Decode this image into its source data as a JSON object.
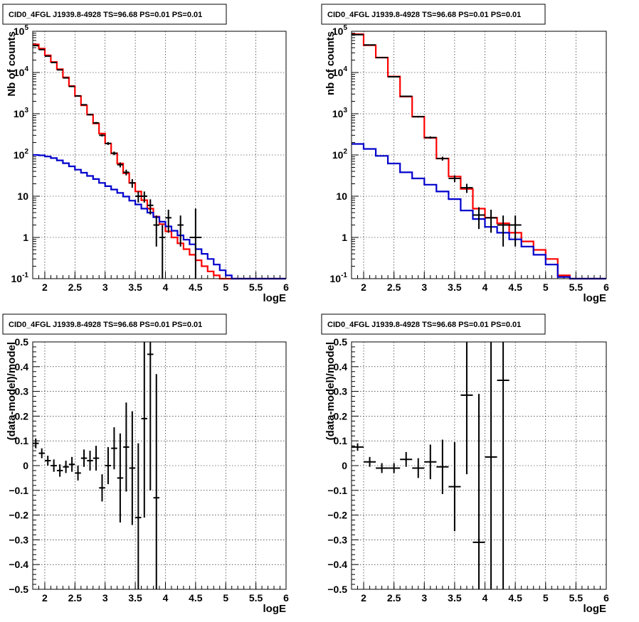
{
  "panels_title": "CID0_4FGL J1939.8-4928 TS=96.68 PS=0.01 PS=0.01",
  "colors": {
    "model_total": "#ff0000",
    "model_background": "#0000cc",
    "data": "#000000"
  },
  "chart_data": [
    {
      "type": "line",
      "title": "CID0_4FGL J1939.8-4928 TS=96.68 PS=0.01 PS=0.01",
      "xlabel": "logE",
      "ylabel": "Nb of counts",
      "xlim": [
        1.8,
        6.0
      ],
      "ylim": [
        0.1,
        100000
      ],
      "yscale": "log",
      "grid": true,
      "x_ticks": [
        "2",
        "2.5",
        "3",
        "3.5",
        "4",
        "4.5",
        "5",
        "5.5",
        "6"
      ],
      "y_ticks": [
        "10⁻¹",
        "1",
        "10",
        "10²",
        "10³",
        "10⁴",
        "10⁵"
      ],
      "bin_edges": [
        1.8,
        1.9,
        2.0,
        2.1,
        2.2,
        2.3,
        2.4,
        2.5,
        2.6,
        2.7,
        2.8,
        2.9,
        3.0,
        3.1,
        3.2,
        3.3,
        3.4,
        3.5,
        3.6,
        3.7,
        3.8,
        3.9,
        4.0,
        4.1,
        4.2,
        4.3,
        4.4,
        4.5,
        4.6,
        4.7,
        4.8,
        4.9,
        5.0,
        5.1,
        5.2,
        5.3,
        5.4,
        5.5,
        5.6,
        5.7,
        5.8,
        5.9,
        6.0
      ],
      "series": [
        {
          "style": "step",
          "values": [
            48000,
            38000,
            26000,
            18000,
            12000,
            7600,
            4700,
            2700,
            1600,
            950,
            580,
            330,
            190,
            110,
            62,
            36,
            21,
            13,
            8,
            5,
            3.2,
            2.1,
            1.4,
            1.0,
            0.72,
            0.52,
            0.38,
            0.28,
            0.2,
            0.15,
            0.12,
            0.1,
            0.1,
            0.1,
            0.1,
            0.1,
            0.1,
            0.1,
            0.1,
            0.1,
            0.1,
            0.1
          ]
        },
        {
          "style": "step",
          "values": [
            100,
            98,
            92,
            84,
            74,
            63,
            53,
            44,
            37,
            31,
            26,
            21,
            17.5,
            14.5,
            12,
            9.8,
            7.8,
            6.3,
            5.0,
            4.0,
            3.1,
            2.4,
            1.85,
            1.45,
            1.12,
            0.88,
            0.68,
            0.52,
            0.4,
            0.3,
            0.22,
            0.16,
            0.12,
            0.1,
            0.1,
            0.1,
            0.1,
            0.1,
            0.1,
            0.1,
            0.1,
            0.1
          ]
        },
        {
          "style": "errorbar",
          "points": [
            {
              "x": 1.85,
              "y": 45000,
              "ylo": 44500,
              "yhi": 45500,
              "xerr": 0.05
            },
            {
              "x": 1.95,
              "y": 36000,
              "ylo": 35600,
              "yhi": 36400,
              "xerr": 0.05
            },
            {
              "x": 2.05,
              "y": 25000,
              "ylo": 24700,
              "yhi": 25300,
              "xerr": 0.05
            },
            {
              "x": 2.15,
              "y": 17500,
              "ylo": 17250,
              "yhi": 17750,
              "xerr": 0.05
            },
            {
              "x": 2.25,
              "y": 11600,
              "ylo": 11400,
              "yhi": 11800,
              "xerr": 0.05
            },
            {
              "x": 2.35,
              "y": 7400,
              "ylo": 7250,
              "yhi": 7550,
              "xerr": 0.05
            },
            {
              "x": 2.45,
              "y": 4600,
              "ylo": 4480,
              "yhi": 4720,
              "xerr": 0.05
            },
            {
              "x": 2.55,
              "y": 2700,
              "ylo": 2620,
              "yhi": 2780,
              "xerr": 0.05
            },
            {
              "x": 2.65,
              "y": 1650,
              "ylo": 1590,
              "yhi": 1710,
              "xerr": 0.05
            },
            {
              "x": 2.75,
              "y": 950,
              "ylo": 910,
              "yhi": 990,
              "xerr": 0.05
            },
            {
              "x": 2.85,
              "y": 600,
              "ylo": 570,
              "yhi": 630,
              "xerr": 0.05
            },
            {
              "x": 2.95,
              "y": 300,
              "ylo": 280,
              "yhi": 320,
              "xerr": 0.05
            },
            {
              "x": 3.05,
              "y": 190,
              "ylo": 175,
              "yhi": 205,
              "xerr": 0.05
            },
            {
              "x": 3.15,
              "y": 110,
              "ylo": 99,
              "yhi": 121,
              "xerr": 0.05
            },
            {
              "x": 3.25,
              "y": 58,
              "ylo": 50,
              "yhi": 66,
              "xerr": 0.05
            },
            {
              "x": 3.35,
              "y": 38,
              "ylo": 32,
              "yhi": 44,
              "xerr": 0.05
            },
            {
              "x": 3.45,
              "y": 21,
              "ylo": 16,
              "yhi": 26,
              "xerr": 0.05
            },
            {
              "x": 3.55,
              "y": 10,
              "ylo": 7,
              "yhi": 13,
              "xerr": 0.05
            },
            {
              "x": 3.65,
              "y": 10,
              "ylo": 7,
              "yhi": 13,
              "xerr": 0.05
            },
            {
              "x": 3.75,
              "y": 6,
              "ylo": 3.6,
              "yhi": 8.4,
              "xerr": 0.05
            },
            {
              "x": 3.85,
              "y": 2,
              "ylo": 0.6,
              "yhi": 3.4,
              "xerr": 0.05
            },
            {
              "x": 3.95,
              "y": 1,
              "ylo": 0.1,
              "yhi": 2.0,
              "xerr": 0.05
            },
            {
              "x": 4.05,
              "y": 3,
              "ylo": 1.3,
              "yhi": 4.7,
              "xerr": 0.05
            },
            {
              "x": 4.25,
              "y": 2,
              "ylo": 0.6,
              "yhi": 3.4,
              "xerr": 0.05
            },
            {
              "x": 4.5,
              "y": 1,
              "ylo": 0.1,
              "yhi": 5,
              "xerr": 0.1
            }
          ]
        }
      ]
    },
    {
      "type": "line",
      "title": "CID0_4FGL J1939.8-4928 TS=96.68 PS=0.01 PS=0.01",
      "xlabel": "logE",
      "ylabel": "nb of counts",
      "xlim": [
        1.8,
        6.0
      ],
      "ylim": [
        0.1,
        100000
      ],
      "yscale": "log",
      "grid": true,
      "x_ticks": [
        "2",
        "2.5",
        "3",
        "3.5",
        "4",
        "4.5",
        "5",
        "5.5",
        "6"
      ],
      "y_ticks": [
        "10⁻¹",
        "1",
        "10",
        "10²",
        "10³",
        "10⁴",
        "10⁵"
      ],
      "bin_edges": [
        1.8,
        2.0,
        2.2,
        2.4,
        2.6,
        2.8,
        3.0,
        3.2,
        3.4,
        3.6,
        3.8,
        4.0,
        4.2,
        4.4,
        4.6,
        4.8,
        5.0,
        5.2,
        5.4,
        5.6,
        5.8,
        6.0
      ],
      "series": [
        {
          "style": "step",
          "values": [
            85000,
            46000,
            23000,
            8000,
            2600,
            850,
            260,
            82,
            30,
            15,
            5,
            3,
            2.2,
            1.3,
            0.8,
            0.5,
            0.3,
            0.12,
            0.1,
            0.1,
            0.1
          ]
        },
        {
          "style": "step",
          "values": [
            185,
            140,
            95,
            62,
            38,
            27,
            19,
            13,
            8.5,
            4.5,
            2.8,
            1.8,
            1.3,
            0.9,
            0.6,
            0.38,
            0.22,
            0.11,
            0.1,
            0.1,
            0.1
          ]
        },
        {
          "style": "errorbar",
          "points": [
            {
              "x": 1.9,
              "y": 83000,
              "ylo": 82400,
              "yhi": 83600,
              "xerr": 0.1
            },
            {
              "x": 2.1,
              "y": 46500,
              "ylo": 46000,
              "yhi": 47000,
              "xerr": 0.1
            },
            {
              "x": 2.3,
              "y": 23000,
              "ylo": 22700,
              "yhi": 23300,
              "xerr": 0.1
            },
            {
              "x": 2.5,
              "y": 7900,
              "ylo": 7750,
              "yhi": 8050,
              "xerr": 0.1
            },
            {
              "x": 2.7,
              "y": 2650,
              "ylo": 2560,
              "yhi": 2740,
              "xerr": 0.1
            },
            {
              "x": 2.9,
              "y": 850,
              "ylo": 810,
              "yhi": 890,
              "xerr": 0.1
            },
            {
              "x": 3.1,
              "y": 265,
              "ylo": 248,
              "yhi": 282,
              "xerr": 0.1
            },
            {
              "x": 3.3,
              "y": 82,
              "ylo": 73,
              "yhi": 91,
              "xerr": 0.1
            },
            {
              "x": 3.5,
              "y": 27,
              "ylo": 22,
              "yhi": 32,
              "xerr": 0.1
            },
            {
              "x": 3.7,
              "y": 16,
              "ylo": 12,
              "yhi": 20,
              "xerr": 0.1
            },
            {
              "x": 3.9,
              "y": 3.5,
              "ylo": 1.6,
              "yhi": 5.4,
              "xerr": 0.1
            },
            {
              "x": 4.1,
              "y": 3,
              "ylo": 1.3,
              "yhi": 4.7,
              "xerr": 0.1
            },
            {
              "x": 4.3,
              "y": 2,
              "ylo": 0.6,
              "yhi": 3.4,
              "xerr": 0.1
            },
            {
              "x": 4.5,
              "y": 2,
              "ylo": 0.6,
              "yhi": 3.4,
              "xerr": 0.1
            }
          ]
        }
      ]
    },
    {
      "type": "scatter",
      "title": "CID0_4FGL J1939.8-4928 TS=96.68 PS=0.01 PS=0.01",
      "xlabel": "logE",
      "ylabel": "(data-model)/model",
      "xlim": [
        1.8,
        6.0
      ],
      "ylim": [
        -0.5,
        0.5
      ],
      "grid": true,
      "x_ticks": [
        "2",
        "2.5",
        "3",
        "3.5",
        "4",
        "4.5",
        "5",
        "5.5",
        "6"
      ],
      "y_ticks": [
        "−0.5",
        "−0.4",
        "−0.3",
        "−0.2",
        "−0.1",
        "0",
        "0.1",
        "0.2",
        "0.3",
        "0.4",
        "0.5"
      ],
      "y_tick_values": [
        -0.5,
        -0.4,
        -0.3,
        -0.2,
        -0.1,
        0,
        0.1,
        0.2,
        0.3,
        0.4,
        0.5
      ],
      "series": [
        {
          "style": "errorbar",
          "points": [
            {
              "x": 1.85,
              "y": 0.09,
              "err": 0.02,
              "xerr": 0.05
            },
            {
              "x": 1.95,
              "y": 0.05,
              "err": 0.02,
              "xerr": 0.05
            },
            {
              "x": 2.05,
              "y": 0.02,
              "err": 0.02,
              "xerr": 0.05
            },
            {
              "x": 2.15,
              "y": 0.0,
              "err": 0.025,
              "xerr": 0.05
            },
            {
              "x": 2.25,
              "y": -0.02,
              "err": 0.025,
              "xerr": 0.05
            },
            {
              "x": 2.35,
              "y": -0.005,
              "err": 0.025,
              "xerr": 0.05
            },
            {
              "x": 2.45,
              "y": 0.005,
              "err": 0.03,
              "xerr": 0.05
            },
            {
              "x": 2.55,
              "y": -0.03,
              "err": 0.03,
              "xerr": 0.05
            },
            {
              "x": 2.65,
              "y": 0.03,
              "err": 0.035,
              "xerr": 0.05
            },
            {
              "x": 2.75,
              "y": 0.02,
              "err": 0.04,
              "xerr": 0.05
            },
            {
              "x": 2.85,
              "y": 0.03,
              "err": 0.05,
              "xerr": 0.05
            },
            {
              "x": 2.95,
              "y": -0.09,
              "err": 0.055,
              "xerr": 0.05
            },
            {
              "x": 3.05,
              "y": 0.0,
              "err": 0.075,
              "xerr": 0.05
            },
            {
              "x": 3.15,
              "y": 0.07,
              "err": 0.085,
              "xerr": 0.05
            },
            {
              "x": 3.25,
              "y": -0.05,
              "err": 0.18,
              "xerr": 0.05
            },
            {
              "x": 3.35,
              "y": 0.075,
              "err": 0.18,
              "xerr": 0.05
            },
            {
              "x": 3.45,
              "y": -0.01,
              "err": 0.23,
              "xerr": 0.05
            },
            {
              "x": 3.55,
              "y": -0.21,
              "err": 0.3,
              "xerr": 0.05
            },
            {
              "x": 3.65,
              "y": 0.19,
              "err": 0.4,
              "xerr": 0.05
            },
            {
              "x": 3.75,
              "y": 0.45,
              "err": 0.55,
              "xerr": 0.05
            },
            {
              "x": 3.85,
              "y": -0.13,
              "err": 0.5,
              "xerr": 0.05
            }
          ]
        }
      ]
    },
    {
      "type": "scatter",
      "title": "CID0_4FGL J1939.8-4928 TS=96.68 PS=0.01 PS=0.01",
      "xlabel": "logE",
      "ylabel": "(data-model)/model",
      "xlim": [
        1.8,
        6.0
      ],
      "ylim": [
        -0.5,
        0.5
      ],
      "grid": true,
      "x_ticks": [
        "2",
        "2.5",
        "3",
        "3.5",
        "4",
        "4.5",
        "5",
        "5.5",
        "6"
      ],
      "y_ticks": [
        "−0.5",
        "−0.4",
        "−0.3",
        "−0.2",
        "−0.1",
        "0",
        "0.1",
        "0.2",
        "0.3",
        "0.4",
        "0.5"
      ],
      "y_tick_values": [
        -0.5,
        -0.4,
        -0.3,
        -0.2,
        -0.1,
        0,
        0.1,
        0.2,
        0.3,
        0.4,
        0.5
      ],
      "series": [
        {
          "style": "errorbar",
          "points": [
            {
              "x": 1.9,
              "y": 0.075,
              "err": 0.015,
              "xerr": 0.1
            },
            {
              "x": 2.1,
              "y": 0.015,
              "err": 0.02,
              "xerr": 0.1
            },
            {
              "x": 2.3,
              "y": -0.01,
              "err": 0.02,
              "xerr": 0.1
            },
            {
              "x": 2.5,
              "y": -0.01,
              "err": 0.02,
              "xerr": 0.1
            },
            {
              "x": 2.7,
              "y": 0.025,
              "err": 0.03,
              "xerr": 0.1
            },
            {
              "x": 2.9,
              "y": -0.01,
              "err": 0.04,
              "xerr": 0.1
            },
            {
              "x": 3.1,
              "y": 0.015,
              "err": 0.07,
              "xerr": 0.1
            },
            {
              "x": 3.3,
              "y": -0.005,
              "err": 0.11,
              "xerr": 0.1
            },
            {
              "x": 3.5,
              "y": -0.085,
              "err": 0.18,
              "xerr": 0.1
            },
            {
              "x": 3.7,
              "y": 0.285,
              "err": 0.32,
              "xerr": 0.1
            },
            {
              "x": 3.9,
              "y": -0.31,
              "err": 0.6,
              "xerr": 0.1
            },
            {
              "x": 4.1,
              "y": 0.035,
              "err": 0.6,
              "xerr": 0.1
            },
            {
              "x": 4.3,
              "y": 0.345,
              "err": 0.9,
              "xerr": 0.1
            }
          ]
        }
      ]
    }
  ]
}
